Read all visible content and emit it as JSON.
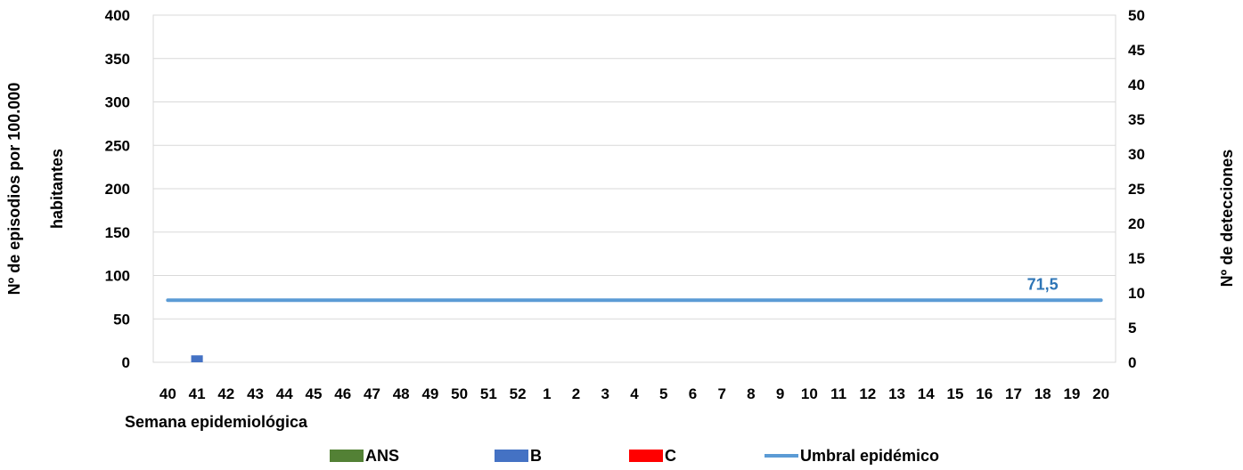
{
  "chart_data": {
    "type": "bar",
    "xlabel": "Semana epidemiológica",
    "ylabel_left": "Nº de episodios por 100.000 habitantes",
    "ylabel_right": "Nº de detecciones",
    "y_left_lim": [
      0,
      400
    ],
    "y_left_ticks": [
      0,
      50,
      100,
      150,
      200,
      250,
      300,
      350,
      400
    ],
    "y_right_lim": [
      0,
      50
    ],
    "y_right_ticks": [
      0,
      5,
      10,
      15,
      20,
      25,
      30,
      35,
      40,
      45,
      50
    ],
    "grid": true,
    "legend_position": "bottom",
    "categories": [
      "40",
      "41",
      "42",
      "43",
      "44",
      "45",
      "46",
      "47",
      "48",
      "49",
      "50",
      "51",
      "52",
      "1",
      "2",
      "3",
      "4",
      "5",
      "6",
      "7",
      "8",
      "9",
      "10",
      "11",
      "12",
      "13",
      "14",
      "15",
      "16",
      "17",
      "18",
      "19",
      "20"
    ],
    "series": [
      {
        "name": "ANS",
        "type": "bar",
        "axis": "right",
        "color": "#538135",
        "values": [
          0,
          0,
          0,
          0,
          0,
          0,
          0,
          0,
          0,
          0,
          0,
          0,
          0,
          0,
          0,
          0,
          0,
          0,
          0,
          0,
          0,
          0,
          0,
          0,
          0,
          0,
          0,
          0,
          0,
          0,
          0,
          0,
          0
        ]
      },
      {
        "name": "B",
        "type": "bar",
        "axis": "right",
        "color": "#4472C4",
        "values": [
          0,
          1,
          0,
          0,
          0,
          0,
          0,
          0,
          0,
          0,
          0,
          0,
          0,
          0,
          0,
          0,
          0,
          0,
          0,
          0,
          0,
          0,
          0,
          0,
          0,
          0,
          0,
          0,
          0,
          0,
          0,
          0,
          0
        ]
      },
      {
        "name": "C",
        "type": "bar",
        "axis": "right",
        "color": "#FF0000",
        "values": [
          0,
          0,
          0,
          0,
          0,
          0,
          0,
          0,
          0,
          0,
          0,
          0,
          0,
          0,
          0,
          0,
          0,
          0,
          0,
          0,
          0,
          0,
          0,
          0,
          0,
          0,
          0,
          0,
          0,
          0,
          0,
          0,
          0
        ]
      },
      {
        "name": "Umbral epidémico",
        "type": "line",
        "axis": "left",
        "color": "#5B9BD5",
        "values": [
          71.5,
          71.5,
          71.5,
          71.5,
          71.5,
          71.5,
          71.5,
          71.5,
          71.5,
          71.5,
          71.5,
          71.5,
          71.5,
          71.5,
          71.5,
          71.5,
          71.5,
          71.5,
          71.5,
          71.5,
          71.5,
          71.5,
          71.5,
          71.5,
          71.5,
          71.5,
          71.5,
          71.5,
          71.5,
          71.5,
          71.5,
          71.5,
          71.5
        ]
      }
    ],
    "annotations": [
      {
        "text": "71,5",
        "series": "Umbral epidémico",
        "category": "18",
        "color": "#2E75B6"
      }
    ]
  }
}
